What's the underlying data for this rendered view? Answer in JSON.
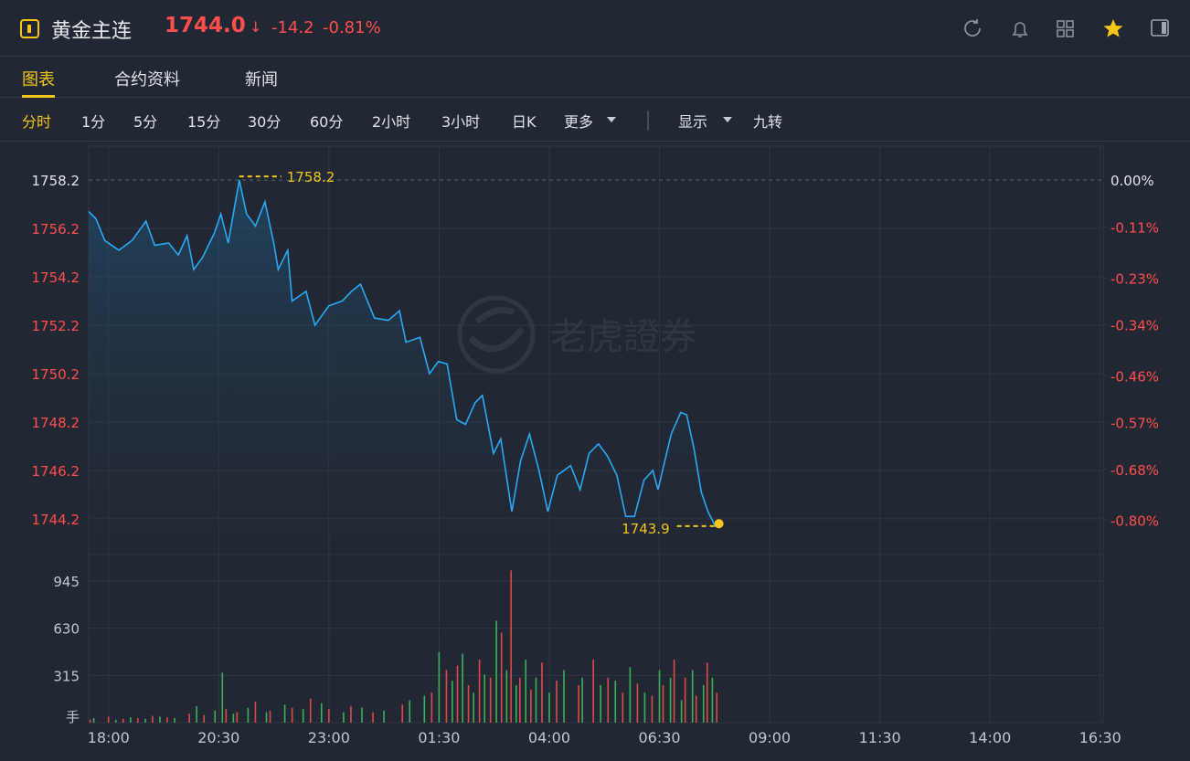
{
  "header": {
    "title": "黄金主连",
    "price": "1744.0",
    "arrow": "↓",
    "change": "-14.2",
    "change_pct": "-0.81%"
  },
  "tabs": [
    "图表",
    "合约资料",
    "新闻"
  ],
  "intervals": [
    "分时",
    "1分",
    "5分",
    "15分",
    "30分",
    "60分",
    "2小时",
    "3小时",
    "日K",
    "更多"
  ],
  "options": [
    "显示",
    "九转"
  ],
  "watermark": "老虎證券",
  "chart_data": [
    {
      "type": "line",
      "color": "#29aaf4",
      "x": [
        -27,
        -17,
        -5,
        14,
        32,
        51,
        63,
        82,
        95,
        107,
        116,
        128,
        144,
        153,
        163,
        178,
        188,
        200,
        213,
        225,
        231,
        244,
        250,
        269,
        281,
        300,
        318,
        331,
        343,
        362,
        381,
        396,
        405,
        424,
        437,
        449,
        461,
        474,
        486,
        499,
        509,
        524,
        534,
        549,
        561,
        573,
        586,
        598,
        611,
        629,
        642,
        654,
        667,
        679,
        692,
        704,
        716,
        729,
        741,
        748,
        766,
        779,
        787,
        797,
        807,
        816,
        826,
        831
      ],
      "values": [
        1756.9,
        1756.6,
        1755.7,
        1755.3,
        1755.7,
        1756.5,
        1755.5,
        1755.6,
        1755.1,
        1755.9,
        1754.5,
        1755.0,
        1756.0,
        1756.8,
        1755.6,
        1758.2,
        1756.8,
        1756.3,
        1757.3,
        1755.6,
        1754.5,
        1755.3,
        1753.2,
        1753.6,
        1752.2,
        1753.0,
        1753.2,
        1753.6,
        1753.9,
        1752.5,
        1752.4,
        1752.8,
        1751.5,
        1751.7,
        1750.2,
        1750.7,
        1750.6,
        1748.3,
        1748.1,
        1749.0,
        1749.3,
        1746.9,
        1747.5,
        1744.5,
        1746.6,
        1747.7,
        1746.2,
        1744.5,
        1746.0,
        1746.4,
        1745.4,
        1746.9,
        1747.3,
        1746.8,
        1746.0,
        1744.3,
        1744.3,
        1745.8,
        1746.2,
        1745.4,
        1747.7,
        1748.6,
        1748.5,
        1747.1,
        1745.3,
        1744.5,
        1743.9,
        1744.0
      ],
      "xlim": [
        -27,
        1354
      ],
      "ylim": [
        1742.8,
        1759.6
      ],
      "yticks": [
        1758.2,
        1756.2,
        1754.2,
        1752.2,
        1750.2,
        1748.2,
        1746.2,
        1744.2
      ],
      "y2lim": [
        -0.876,
        0.08
      ],
      "y2ticks": [
        {
          "value": 0,
          "label": "0.00%"
        },
        {
          "value": -0.11,
          "label": "-0.11%"
        },
        {
          "value": -0.23,
          "label": "-0.23%"
        },
        {
          "value": -0.34,
          "label": "-0.34%"
        },
        {
          "value": -0.46,
          "label": "-0.46%"
        },
        {
          "value": -0.57,
          "label": "-0.57%"
        },
        {
          "value": -0.68,
          "label": "-0.68%"
        },
        {
          "value": -0.8,
          "label": "-0.80%"
        }
      ],
      "max_label": 1758.2,
      "min_label": 1743.9
    },
    {
      "type": "bar",
      "unit": "手",
      "xlim": [
        -27,
        1354
      ],
      "xticks": [
        {
          "value": 0,
          "label": "18:00"
        },
        {
          "value": 150,
          "label": "20:30"
        },
        {
          "value": 300,
          "label": "23:00"
        },
        {
          "value": 450,
          "label": "01:30"
        },
        {
          "value": 600,
          "label": "04:00"
        },
        {
          "value": 750,
          "label": "06:30"
        },
        {
          "value": 900,
          "label": "09:00"
        },
        {
          "value": 1050,
          "label": "11:30"
        },
        {
          "value": 1200,
          "label": "14:00"
        },
        {
          "value": 1350,
          "label": "16:30"
        }
      ],
      "ylim": [
        0,
        1134
      ],
      "yticks": [
        315,
        630,
        945
      ],
      "series": [
        {
          "color": "#e04848",
          "x": [
            -25,
            0,
            20,
            40,
            60,
            80,
            110,
            130,
            160,
            175,
            200,
            220,
            250,
            275,
            300,
            330,
            360,
            400,
            440,
            460,
            475,
            490,
            505,
            520,
            535,
            548,
            560,
            575,
            590,
            610,
            640,
            660,
            680,
            700,
            720,
            740,
            755,
            770,
            785,
            800,
            815,
            828
          ],
          "values": [
            20,
            40,
            25,
            30,
            45,
            35,
            60,
            50,
            90,
            70,
            140,
            80,
            100,
            160,
            90,
            110,
            70,
            120,
            200,
            350,
            380,
            250,
            420,
            300,
            600,
            1016,
            300,
            220,
            400,
            280,
            250,
            420,
            300,
            200,
            260,
            180,
            250,
            420,
            300,
            180,
            400,
            200
          ]
        },
        {
          "color": "#3fae5a",
          "x": [
            -20,
            10,
            30,
            50,
            70,
            90,
            120,
            145,
            155,
            170,
            190,
            215,
            240,
            265,
            290,
            320,
            345,
            375,
            410,
            430,
            450,
            468,
            482,
            497,
            512,
            528,
            542,
            555,
            568,
            582,
            600,
            620,
            645,
            670,
            690,
            710,
            730,
            750,
            765,
            780,
            795,
            810,
            822
          ],
          "values": [
            30,
            20,
            35,
            25,
            40,
            30,
            110,
            80,
            333,
            60,
            100,
            70,
            120,
            90,
            130,
            70,
            100,
            80,
            150,
            180,
            472,
            280,
            460,
            200,
            320,
            680,
            350,
            250,
            420,
            300,
            200,
            350,
            300,
            250,
            280,
            370,
            200,
            350,
            300,
            150,
            350,
            250,
            300
          ]
        }
      ]
    }
  ]
}
